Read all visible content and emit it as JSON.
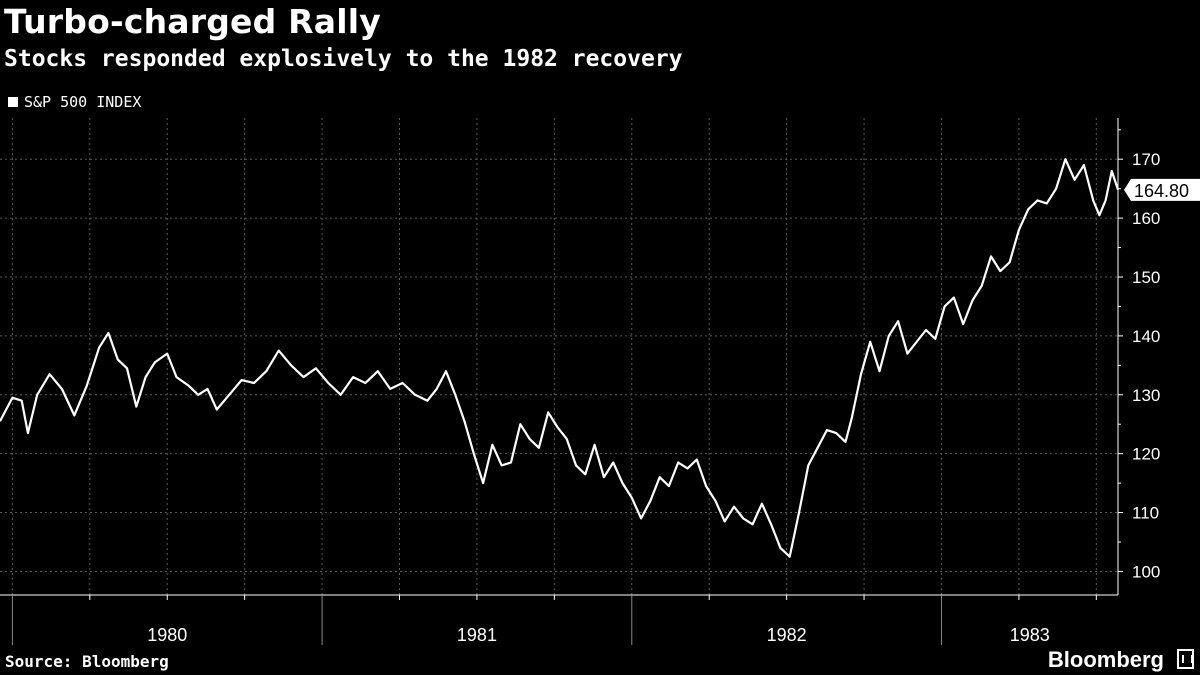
{
  "title": "Turbo-charged Rally",
  "subtitle": "Stocks responded explosively to the 1982 recovery",
  "legend": {
    "label": "S&P 500 INDEX"
  },
  "source": "Source: Bloomberg",
  "brand": "Bloomberg",
  "chart_data": {
    "type": "line",
    "title": "Turbo-charged Rally",
    "subtitle": "Stocks responded explosively to the 1982 recovery",
    "series_name": "S&P 500 INDEX",
    "x_unit": "year",
    "xlim": [
      1979.96,
      1983.57
    ],
    "ylim": [
      96,
      177
    ],
    "yticks": [
      100,
      110,
      120,
      130,
      140,
      150,
      160,
      170
    ],
    "xtick_labels": [
      "1980",
      "1981",
      "1982",
      "1983"
    ],
    "last_value_label": "164.80",
    "last_value": 164.8,
    "line_color": "#ffffff",
    "grid": true,
    "points": [
      [
        1979.96,
        125.5
      ],
      [
        1980.0,
        129.5
      ],
      [
        1980.03,
        129.0
      ],
      [
        1980.05,
        123.5
      ],
      [
        1980.08,
        130.0
      ],
      [
        1980.12,
        133.5
      ],
      [
        1980.16,
        131.0
      ],
      [
        1980.2,
        126.5
      ],
      [
        1980.24,
        131.5
      ],
      [
        1980.28,
        138.0
      ],
      [
        1980.31,
        140.5
      ],
      [
        1980.34,
        136.0
      ],
      [
        1980.37,
        134.5
      ],
      [
        1980.4,
        128.0
      ],
      [
        1980.43,
        133.0
      ],
      [
        1980.46,
        135.5
      ],
      [
        1980.5,
        137.0
      ],
      [
        1980.53,
        133.0
      ],
      [
        1980.57,
        131.5
      ],
      [
        1980.6,
        130.0
      ],
      [
        1980.63,
        131.0
      ],
      [
        1980.66,
        127.5
      ],
      [
        1980.7,
        130.0
      ],
      [
        1980.74,
        132.5
      ],
      [
        1980.78,
        132.0
      ],
      [
        1980.82,
        134.0
      ],
      [
        1980.86,
        137.5
      ],
      [
        1980.9,
        135.0
      ],
      [
        1980.94,
        133.0
      ],
      [
        1980.98,
        134.5
      ],
      [
        1981.02,
        132.0
      ],
      [
        1981.06,
        130.0
      ],
      [
        1981.1,
        133.0
      ],
      [
        1981.14,
        132.0
      ],
      [
        1981.18,
        134.0
      ],
      [
        1981.22,
        131.0
      ],
      [
        1981.26,
        132.0
      ],
      [
        1981.3,
        130.0
      ],
      [
        1981.34,
        129.0
      ],
      [
        1981.37,
        131.0
      ],
      [
        1981.4,
        134.0
      ],
      [
        1981.43,
        130.0
      ],
      [
        1981.46,
        125.5
      ],
      [
        1981.49,
        120.0
      ],
      [
        1981.52,
        115.0
      ],
      [
        1981.55,
        121.5
      ],
      [
        1981.58,
        118.0
      ],
      [
        1981.61,
        118.5
      ],
      [
        1981.64,
        125.0
      ],
      [
        1981.67,
        122.5
      ],
      [
        1981.7,
        121.0
      ],
      [
        1981.73,
        127.0
      ],
      [
        1981.76,
        124.5
      ],
      [
        1981.79,
        122.5
      ],
      [
        1981.82,
        118.0
      ],
      [
        1981.85,
        116.5
      ],
      [
        1981.88,
        121.5
      ],
      [
        1981.91,
        116.0
      ],
      [
        1981.94,
        118.5
      ],
      [
        1981.97,
        115.0
      ],
      [
        1982.0,
        112.5
      ],
      [
        1982.03,
        109.0
      ],
      [
        1982.06,
        112.0
      ],
      [
        1982.09,
        116.0
      ],
      [
        1982.12,
        114.5
      ],
      [
        1982.15,
        118.5
      ],
      [
        1982.18,
        117.5
      ],
      [
        1982.21,
        119.0
      ],
      [
        1982.24,
        114.5
      ],
      [
        1982.27,
        112.0
      ],
      [
        1982.3,
        108.5
      ],
      [
        1982.33,
        111.0
      ],
      [
        1982.36,
        109.0
      ],
      [
        1982.39,
        108.0
      ],
      [
        1982.42,
        111.5
      ],
      [
        1982.45,
        108.0
      ],
      [
        1982.48,
        104.0
      ],
      [
        1982.51,
        102.5
      ],
      [
        1982.54,
        110.0
      ],
      [
        1982.57,
        118.0
      ],
      [
        1982.6,
        121.0
      ],
      [
        1982.63,
        124.0
      ],
      [
        1982.66,
        123.5
      ],
      [
        1982.69,
        122.0
      ],
      [
        1982.71,
        126.0
      ],
      [
        1982.74,
        133.5
      ],
      [
        1982.77,
        139.0
      ],
      [
        1982.8,
        134.0
      ],
      [
        1982.83,
        140.0
      ],
      [
        1982.86,
        142.5
      ],
      [
        1982.89,
        137.0
      ],
      [
        1982.92,
        139.0
      ],
      [
        1982.95,
        141.0
      ],
      [
        1982.98,
        139.5
      ],
      [
        1983.01,
        145.0
      ],
      [
        1983.04,
        146.5
      ],
      [
        1983.07,
        142.0
      ],
      [
        1983.1,
        146.0
      ],
      [
        1983.13,
        148.5
      ],
      [
        1983.16,
        153.5
      ],
      [
        1983.19,
        151.0
      ],
      [
        1983.22,
        152.5
      ],
      [
        1983.25,
        158.0
      ],
      [
        1983.28,
        161.5
      ],
      [
        1983.31,
        163.0
      ],
      [
        1983.34,
        162.5
      ],
      [
        1983.37,
        165.0
      ],
      [
        1983.4,
        170.0
      ],
      [
        1983.43,
        166.5
      ],
      [
        1983.46,
        169.0
      ],
      [
        1983.49,
        163.0
      ],
      [
        1983.51,
        160.5
      ],
      [
        1983.53,
        163.0
      ],
      [
        1983.55,
        168.0
      ],
      [
        1983.57,
        164.8
      ]
    ]
  }
}
